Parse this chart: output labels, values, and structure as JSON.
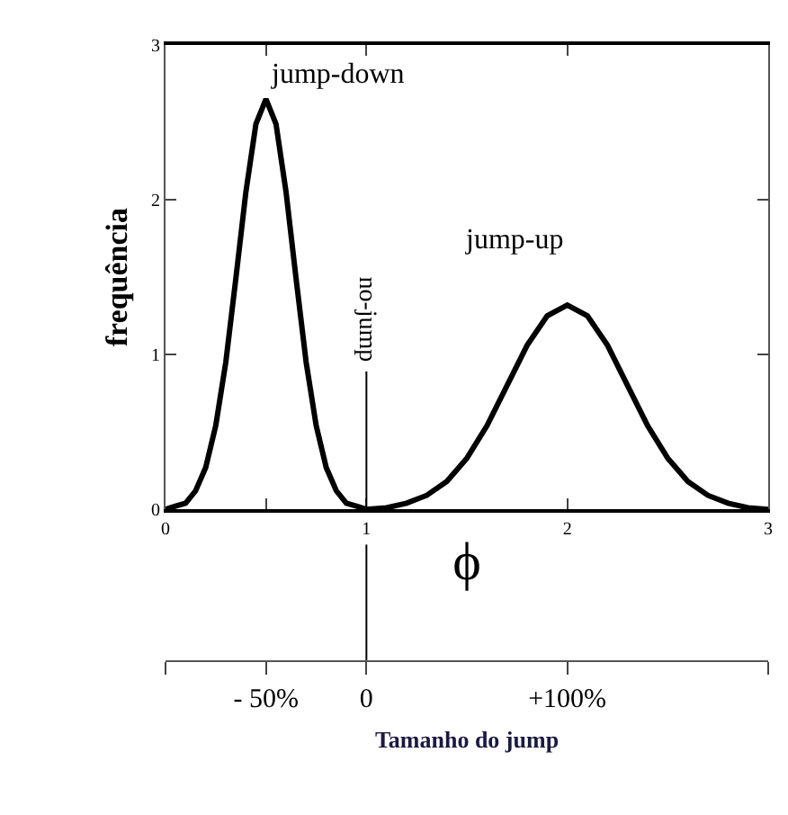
{
  "chart_data": {
    "type": "line",
    "xlabel": "ϕ",
    "ylabel": "frequência",
    "x2label": "Tamanho do jump",
    "x": [
      0,
      0.05,
      0.1,
      0.15,
      0.2,
      0.25,
      0.3,
      0.35,
      0.4,
      0.45,
      0.5,
      0.55,
      0.6,
      0.65,
      0.7,
      0.75,
      0.8,
      0.85,
      0.9,
      0.95,
      1.0,
      1.1,
      1.2,
      1.3,
      1.4,
      1.5,
      1.6,
      1.7,
      1.8,
      1.9,
      2.0,
      2.1,
      2.2,
      2.3,
      2.4,
      2.5,
      2.6,
      2.7,
      2.8,
      2.9,
      3.0
    ],
    "series": [
      {
        "color": "#000000",
        "values": [
          0,
          0.02,
          0.04,
          0.12,
          0.27,
          0.54,
          0.95,
          1.49,
          2.05,
          2.49,
          2.65,
          2.49,
          2.05,
          1.49,
          0.95,
          0.54,
          0.27,
          0.12,
          0.04,
          0.02,
          0,
          0.01,
          0.04,
          0.09,
          0.18,
          0.33,
          0.54,
          0.8,
          1.06,
          1.25,
          1.32,
          1.25,
          1.06,
          0.8,
          0.54,
          0.33,
          0.18,
          0.09,
          0.04,
          0.01,
          0
        ]
      }
    ],
    "xlim": [
      0,
      3
    ],
    "xticks": [
      0,
      {
        "value": 0.5,
        "label": null
      },
      1,
      2,
      3
    ],
    "ylim": [
      0,
      3
    ],
    "yticks": [
      0,
      1,
      2,
      3
    ],
    "x2lim": [
      -100,
      200
    ],
    "x2ticks": [
      {
        "value": -100,
        "label": null
      },
      {
        "value": -50,
        "label": "- 50%"
      },
      {
        "value": 0,
        "label": "0"
      },
      {
        "value": 100,
        "label": "+100%"
      },
      {
        "value": 200,
        "label": null
      }
    ],
    "ref_lines": [
      {
        "axis": "x",
        "value": 1,
        "label": "no-jump",
        "color": "#000000"
      }
    ],
    "annotations": [
      "jump-down",
      "jump-up"
    ],
    "grid": false,
    "legend": false,
    "marker": "none",
    "line_style": "solid"
  }
}
